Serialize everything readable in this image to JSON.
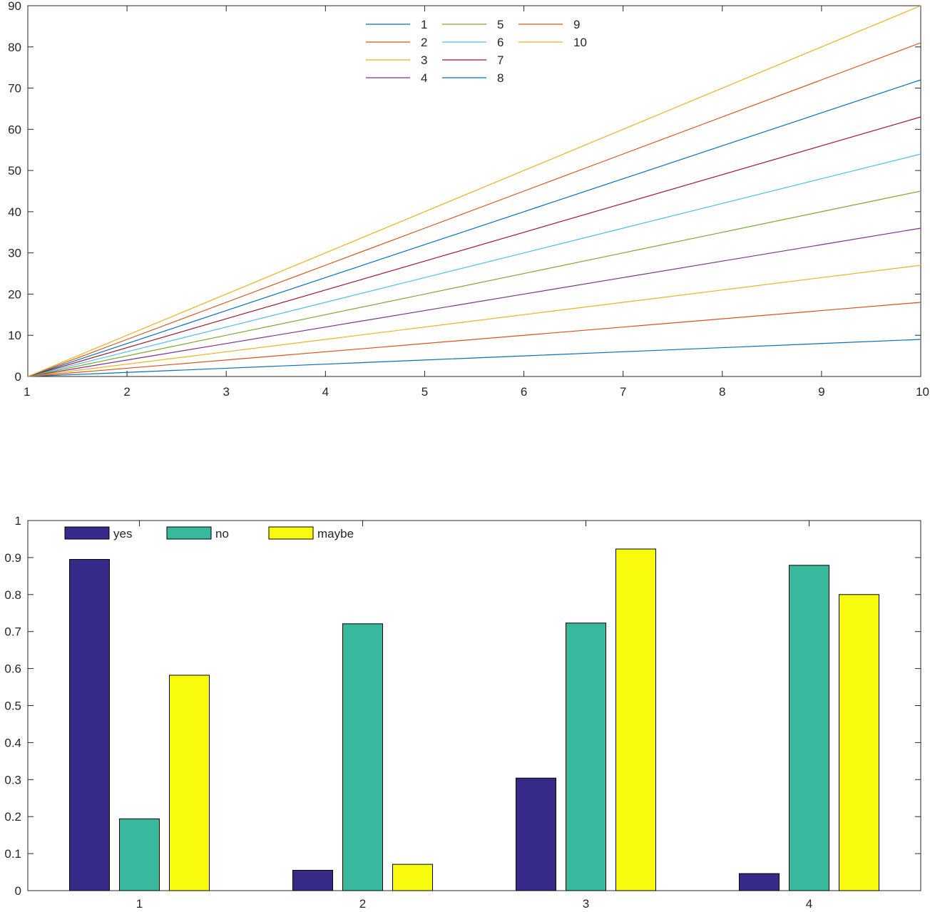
{
  "chart_data": [
    {
      "type": "line",
      "title": "",
      "xlabel": "",
      "ylabel": "",
      "x": [
        1,
        2,
        3,
        4,
        5,
        6,
        7,
        8,
        9,
        10
      ],
      "xlim": [
        1,
        10
      ],
      "ylim": [
        0,
        90
      ],
      "xticks": [
        "1",
        "2",
        "3",
        "4",
        "5",
        "6",
        "7",
        "8",
        "9",
        "10"
      ],
      "yticks": [
        "0",
        "10",
        "20",
        "30",
        "40",
        "50",
        "60",
        "70",
        "80",
        "90"
      ],
      "legend_position": "top-center",
      "legend_columns": 3,
      "series": [
        {
          "name": "1",
          "color": "#0072BD",
          "values": [
            0,
            1,
            2,
            3,
            4,
            5,
            6,
            7,
            8,
            9
          ]
        },
        {
          "name": "2",
          "color": "#D95319",
          "values": [
            0,
            2,
            4,
            6,
            8,
            10,
            12,
            14,
            16,
            18
          ]
        },
        {
          "name": "3",
          "color": "#EDB120",
          "values": [
            0,
            3,
            6,
            9,
            12,
            15,
            18,
            21,
            24,
            27
          ]
        },
        {
          "name": "4",
          "color": "#7E2F8E",
          "values": [
            0,
            4,
            8,
            12,
            16,
            20,
            24,
            28,
            32,
            36
          ]
        },
        {
          "name": "5",
          "color": "#77AC30",
          "values": [
            0,
            5,
            10,
            15,
            20,
            25,
            30,
            35,
            40,
            45
          ]
        },
        {
          "name": "6",
          "color": "#4DBEEE",
          "values": [
            0,
            6,
            12,
            18,
            24,
            30,
            36,
            42,
            48,
            54
          ]
        },
        {
          "name": "7",
          "color": "#A2142F",
          "values": [
            0,
            7,
            14,
            21,
            28,
            35,
            42,
            49,
            56,
            63
          ]
        },
        {
          "name": "8",
          "color": "#0072BD",
          "values": [
            0,
            8,
            16,
            24,
            32,
            40,
            48,
            56,
            64,
            72
          ]
        },
        {
          "name": "9",
          "color": "#D95319",
          "values": [
            0,
            9,
            18,
            27,
            36,
            45,
            54,
            63,
            72,
            81
          ]
        },
        {
          "name": "10",
          "color": "#EDB120",
          "values": [
            0,
            10,
            20,
            30,
            40,
            50,
            60,
            70,
            80,
            90
          ]
        }
      ]
    },
    {
      "type": "bar",
      "title": "",
      "xlabel": "",
      "ylabel": "",
      "categories": [
        "1",
        "2",
        "3",
        "4"
      ],
      "ylim": [
        0,
        1
      ],
      "yticks": [
        "0",
        "0.1",
        "0.2",
        "0.3",
        "0.4",
        "0.5",
        "0.6",
        "0.7",
        "0.8",
        "0.9",
        "1"
      ],
      "legend_position": "top-left",
      "series": [
        {
          "name": "yes",
          "color": "#352A87",
          "values": [
            0.895,
            0.055,
            0.304,
            0.046
          ]
        },
        {
          "name": "no",
          "color": "#38B99E",
          "values": [
            0.194,
            0.721,
            0.723,
            0.879
          ]
        },
        {
          "name": "maybe",
          "color": "#F9FB0E",
          "values": [
            0.582,
            0.071,
            0.923,
            0.8
          ]
        }
      ]
    }
  ]
}
